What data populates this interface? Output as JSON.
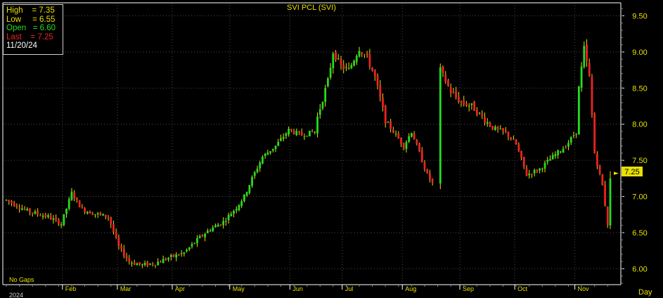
{
  "chart_data": {
    "type": "candlestick",
    "title": "SVI  PCL  (SVI)",
    "period_label": "Day",
    "gaps_label": "No Gaps",
    "year_label": "2024",
    "month_labels": [
      "Feb",
      "Mar",
      "Apr",
      "May",
      "Jun",
      "Jul",
      "Aug",
      "Sep",
      "Oct",
      "Nov"
    ],
    "y_ticks": [
      "6.00",
      "6.50",
      "7.00",
      "7.50",
      "8.00",
      "8.50",
      "9.00",
      "9.50"
    ],
    "ylim": [
      5.78,
      9.68
    ],
    "last_price_label": "7.25",
    "info": {
      "high": "High    = 7.35",
      "low": "Low     = 6.55",
      "open": "Open   = 6.60",
      "last": "Last    = 7.25",
      "date": "11/20/24"
    },
    "anchors": [
      [
        "2024-01-02",
        6.95
      ],
      [
        "2024-01-12",
        6.8
      ],
      [
        "2024-01-24",
        6.72
      ],
      [
        "2024-01-31",
        6.62
      ],
      [
        "2024-02-06",
        7.05
      ],
      [
        "2024-02-12",
        6.82
      ],
      [
        "2024-02-19",
        6.76
      ],
      [
        "2024-02-26",
        6.72
      ],
      [
        "2024-03-01",
        6.3
      ],
      [
        "2024-03-07",
        6.1
      ],
      [
        "2024-03-14",
        6.05
      ],
      [
        "2024-03-21",
        6.08
      ],
      [
        "2024-03-28",
        6.15
      ],
      [
        "2024-04-05",
        6.22
      ],
      [
        "2024-04-12",
        6.4
      ],
      [
        "2024-04-19",
        6.55
      ],
      [
        "2024-04-26",
        6.65
      ],
      [
        "2024-05-03",
        6.85
      ],
      [
        "2024-05-08",
        7.0
      ],
      [
        "2024-05-13",
        7.25
      ],
      [
        "2024-05-17",
        7.55
      ],
      [
        "2024-05-24",
        7.7
      ],
      [
        "2024-05-31",
        7.92
      ],
      [
        "2024-06-07",
        7.85
      ],
      [
        "2024-06-14",
        7.9
      ],
      [
        "2024-06-17",
        8.1
      ],
      [
        "2024-06-21",
        8.6
      ],
      [
        "2024-06-25",
        9.0
      ],
      [
        "2024-06-28",
        8.8
      ],
      [
        "2024-07-03",
        8.75
      ],
      [
        "2024-07-09",
        9.05
      ],
      [
        "2024-07-12",
        8.92
      ],
      [
        "2024-07-17",
        8.65
      ],
      [
        "2024-07-23",
        8.05
      ],
      [
        "2024-07-29",
        7.85
      ],
      [
        "2024-08-01",
        7.7
      ],
      [
        "2024-08-06",
        7.9
      ],
      [
        "2024-08-09",
        7.6
      ],
      [
        "2024-08-14",
        7.3
      ],
      [
        "2024-08-16",
        7.18
      ],
      [
        "2024-08-21",
        8.75
      ],
      [
        "2024-08-27",
        8.45
      ],
      [
        "2024-09-02",
        8.3
      ],
      [
        "2024-09-06",
        8.25
      ],
      [
        "2024-09-12",
        8.1
      ],
      [
        "2024-09-18",
        7.95
      ],
      [
        "2024-09-25",
        7.88
      ],
      [
        "2024-10-01",
        7.72
      ],
      [
        "2024-10-07",
        7.3
      ],
      [
        "2024-10-14",
        7.38
      ],
      [
        "2024-10-21",
        7.55
      ],
      [
        "2024-10-28",
        7.7
      ],
      [
        "2024-11-01",
        7.9
      ],
      [
        "2024-11-04",
        8.5
      ],
      [
        "2024-11-06",
        9.05
      ],
      [
        "2024-11-08",
        8.65
      ],
      [
        "2024-11-12",
        7.6
      ],
      [
        "2024-11-15",
        7.15
      ],
      [
        "2024-11-19",
        6.62
      ],
      [
        "2024-11-20",
        7.25
      ]
    ]
  }
}
